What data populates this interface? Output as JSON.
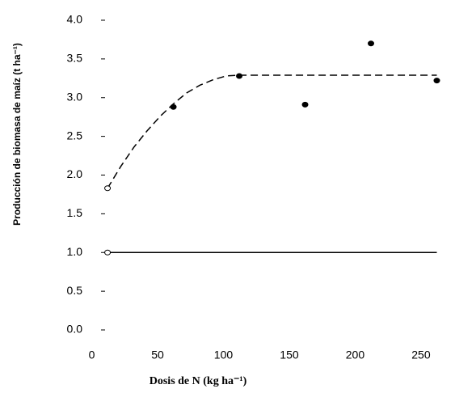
{
  "chart_data": {
    "type": "scatter",
    "x_label": "Dosis de N (kg ha⁻¹)",
    "y_label": "Producción de biomasa de maíz (t ha⁻¹)",
    "xlim": [
      0,
      262
    ],
    "ylim": [
      0,
      4
    ],
    "xticks": [
      0,
      50,
      100,
      150,
      200,
      250
    ],
    "yticks": [
      {
        "value": 0,
        "label": "0.0"
      },
      {
        "value": 0.5,
        "label": "0.5"
      },
      {
        "value": 1,
        "label": "1.0"
      },
      {
        "value": 1.5,
        "label": "1.5"
      },
      {
        "value": 2,
        "label": "2.0"
      },
      {
        "value": 2.5,
        "label": "2.5"
      },
      {
        "value": 3,
        "label": "3.0"
      },
      {
        "value": 3.5,
        "label": "3.5"
      },
      {
        "value": 4,
        "label": "4.0"
      }
    ],
    "grid": false,
    "series": [
      {
        "color": "#000000",
        "line": "dashed",
        "marker": "none",
        "x": [
          12,
          22,
          32,
          42,
          52,
          62,
          72,
          82,
          92,
          102,
          112,
          262
        ],
        "values": [
          1.83,
          2.11,
          2.36,
          2.57,
          2.76,
          2.92,
          3.06,
          3.16,
          3.23,
          3.28,
          3.29,
          3.29
        ]
      },
      {
        "color": "#000000",
        "line": "solid",
        "marker": "none",
        "x": [
          12,
          262
        ],
        "values": [
          1,
          1
        ]
      },
      {
        "color": "#000000",
        "line": "none",
        "marker": "open",
        "x": [
          12,
          12
        ],
        "values": [
          1,
          1.83
        ]
      },
      {
        "color": "#000000",
        "line": "none",
        "marker": "filled",
        "x": [
          62,
          112,
          162,
          212,
          262
        ],
        "values": [
          2.88,
          3.28,
          2.91,
          3.7,
          3.22
        ]
      }
    ]
  }
}
